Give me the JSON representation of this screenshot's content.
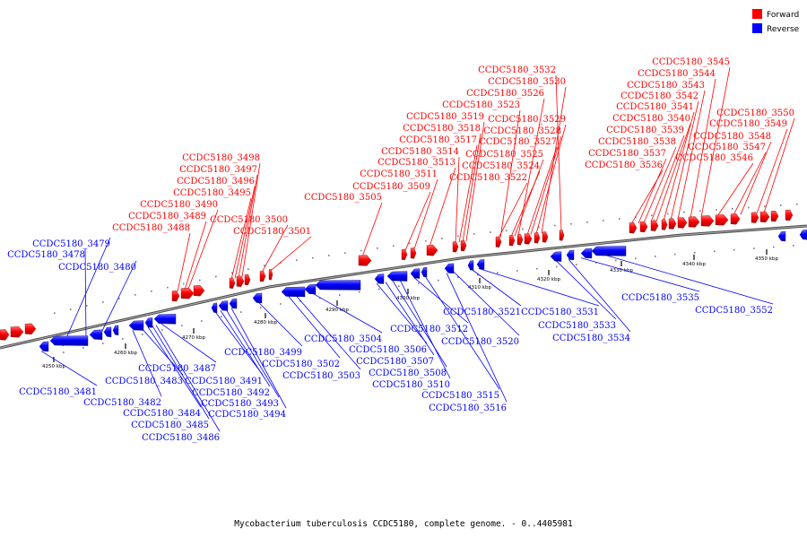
{
  "caption": "Mycobacterium tuberculosis CCDC5180, complete genome. - 0..4405981",
  "legend": [
    {
      "label": "Forward",
      "color": "#ff0000"
    },
    {
      "label": "Reverse",
      "color": "#0000ff"
    }
  ],
  "colors": {
    "forward": "#ff0000",
    "reverse": "#0000ff",
    "backbone": "#808080"
  },
  "ticks": [
    "4250 kbp",
    "4260 kbp",
    "4270 kbp",
    "4280 kbp",
    "4290 kbp",
    "4300 kbp",
    "4310 kbp",
    "4320 kbp",
    "4330 kbp",
    "4340 kbp",
    "4350 kbp"
  ],
  "forward_labels": [
    "CCDC5180_3488",
    "CCDC5180_3489",
    "CCDC5180_3490",
    "CCDC5180_3495",
    "CCDC5180_3496",
    "CCDC5180_3497",
    "CCDC5180_3498",
    "CCDC5180_3500",
    "CCDC5180_3501",
    "CCDC5180_3505",
    "CCDC5180_3509",
    "CCDC5180_3511",
    "CCDC5180_3513",
    "CCDC5180_3514",
    "CCDC5180_3517",
    "CCDC5180_3518",
    "CCDC5180_3519",
    "CCDC5180_3522",
    "CCDC5180_3523",
    "CCDC5180_3524",
    "CCDC5180_3525",
    "CCDC5180_3526",
    "CCDC5180_3527",
    "CCDC5180_3528",
    "CCDC5180_3529",
    "CCDC5180_3530",
    "CCDC5180_3532",
    "CCDC5180_3536",
    "CCDC5180_3537",
    "CCDC5180_3538",
    "CCDC5180_3539",
    "CCDC5180_3540",
    "CCDC5180_3541",
    "CCDC5180_3542",
    "CCDC5180_3543",
    "CCDC5180_3544",
    "CCDC5180_3545",
    "CCDC5180_3546",
    "CCDC5180_3547",
    "CCDC5180_3548",
    "CCDC5180_3549",
    "CCDC5180_3550"
  ],
  "reverse_labels": [
    "CCDC5180_3479",
    "CCDC5180_3478",
    "CCDC5180_3480",
    "CCDC5180_3481",
    "CCDC5180_3482",
    "CCDC5180_3483",
    "CCDC5180_3484",
    "CCDC5180_3485",
    "CCDC5180_3486",
    "CCDC5180_3487",
    "CCDC5180_3491",
    "CCDC5180_3492",
    "CCDC5180_3493",
    "CCDC5180_3494",
    "CCDC5180_3499",
    "CCDC5180_3502",
    "CCDC5180_3503",
    "CCDC5180_3504",
    "CCDC5180_3506",
    "CCDC5180_3507",
    "CCDC5180_3508",
    "CCDC5180_3510",
    "CCDC5180_3512",
    "CCDC5180_3515",
    "CCDC5180_3516",
    "CCDC5180_3520",
    "CCDC5180_3521",
    "CCDC5180_3531",
    "CCDC5180_3533",
    "CCDC5180_3534",
    "CCDC5180_3535",
    "CCDC5180_3552"
  ]
}
